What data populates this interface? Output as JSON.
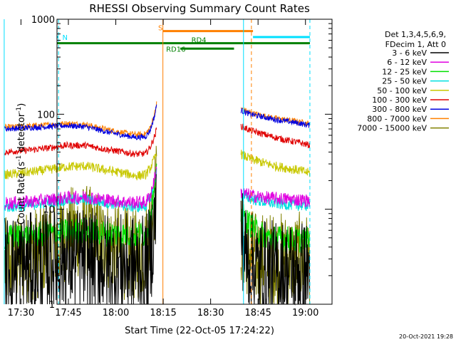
{
  "chart_data": {
    "type": "line",
    "title": "RHESSI Observing Summary Count Rates",
    "xlabel": "Start Time (22-Oct-05 17:24:22)",
    "ylabel": "Count Rate (s⁻¹ detector⁻¹)",
    "ylabel_parts": [
      "Count Rate (s",
      "-1",
      " detector",
      "-1",
      ")"
    ],
    "yscale": "log",
    "ylim": [
      1,
      1000
    ],
    "xlim_minutes": [
      17.0,
      104.0
    ],
    "x_unit": "minutes after 17:24:22",
    "x_ticks": [
      {
        "label": "17:30",
        "min": 5.6
      },
      {
        "label": "17:45",
        "min": 20.6
      },
      {
        "label": "18:00",
        "min": 35.6
      },
      {
        "label": "18:15",
        "min": 50.6
      },
      {
        "label": "18:30",
        "min": 65.6
      },
      {
        "label": "18:45",
        "min": 80.6
      },
      {
        "label": "19:00",
        "min": 95.6
      }
    ],
    "y_ticks": [
      {
        "label": "1",
        "value": 1
      },
      {
        "label": "10",
        "value": 10
      },
      {
        "label": "100",
        "value": 100
      },
      {
        "label": "1000",
        "value": 1000
      }
    ],
    "legend_header": [
      "Det 1,3,4,5,6,9,",
      "FDecim 1, Att 0"
    ],
    "legend_position": "right",
    "gaps_minutes": [
      [
        48.5,
        75.0
      ]
    ],
    "series": [
      {
        "name": "3 - 6 keV",
        "color": "#000000",
        "noise": 0.55,
        "points": [
          [
            0.5,
            2.5
          ],
          [
            8,
            2.6
          ],
          [
            14,
            2.8
          ],
          [
            20,
            3.0
          ],
          [
            26,
            3.0
          ],
          [
            32,
            2.7
          ],
          [
            38,
            2.6
          ],
          [
            42,
            2.5
          ],
          [
            45,
            2.4
          ],
          [
            46.5,
            3.2
          ],
          [
            48,
            8
          ],
          [
            48.5,
            14
          ]
        ],
        "post": [
          [
            75.2,
            6
          ],
          [
            77,
            3.0
          ],
          [
            80,
            2.4
          ],
          [
            84,
            2.2
          ],
          [
            88,
            2.2
          ],
          [
            93,
            2.2
          ],
          [
            97,
            2.2
          ]
        ]
      },
      {
        "name": "6 - 12 keV",
        "color": "#e000e0",
        "noise": 0.07,
        "points": [
          [
            0.5,
            11.5
          ],
          [
            8,
            12
          ],
          [
            14,
            12.5
          ],
          [
            20,
            13.2
          ],
          [
            26,
            13.5
          ],
          [
            32,
            12.6
          ],
          [
            38,
            12
          ],
          [
            42,
            11.8
          ],
          [
            45,
            11.8
          ],
          [
            46.5,
            14
          ],
          [
            48,
            22
          ],
          [
            48.5,
            26
          ]
        ],
        "post": [
          [
            75.2,
            15
          ],
          [
            78,
            14
          ],
          [
            82,
            13.3
          ],
          [
            86,
            13
          ],
          [
            90,
            12.8
          ],
          [
            94,
            12.5
          ],
          [
            97,
            12.3
          ]
        ]
      },
      {
        "name": "12 - 25 keV",
        "color": "#00e000",
        "noise": 0.14,
        "points": [
          [
            0.5,
            5.0
          ],
          [
            8,
            5.3
          ],
          [
            14,
            5.5
          ],
          [
            20,
            5.8
          ],
          [
            26,
            6.0
          ],
          [
            32,
            5.6
          ],
          [
            38,
            5.4
          ],
          [
            42,
            5.3
          ],
          [
            45,
            5.5
          ],
          [
            46.5,
            7.5
          ],
          [
            48,
            18
          ],
          [
            48.5,
            22
          ]
        ],
        "post": [
          [
            75.2,
            9
          ],
          [
            77,
            7.5
          ],
          [
            80,
            6.0
          ],
          [
            84,
            5.0
          ],
          [
            88,
            4.9
          ],
          [
            92,
            4.8
          ],
          [
            97,
            4.7
          ]
        ]
      },
      {
        "name": "25 - 50 keV",
        "color": "#00e0e0",
        "noise": 0.06,
        "points": [
          [
            0.5,
            10.5
          ],
          [
            8,
            11
          ],
          [
            14,
            11.8
          ],
          [
            20,
            12.5
          ],
          [
            26,
            12.6
          ],
          [
            32,
            11.8
          ],
          [
            38,
            11
          ],
          [
            42,
            10.5
          ],
          [
            45,
            10.8
          ],
          [
            46.5,
            13
          ],
          [
            48,
            20
          ],
          [
            48.5,
            24
          ]
        ],
        "post": [
          [
            75.2,
            14
          ],
          [
            78,
            13
          ],
          [
            82,
            12
          ],
          [
            86,
            11.5
          ],
          [
            90,
            11.2
          ],
          [
            94,
            11
          ],
          [
            97,
            10.8
          ]
        ]
      },
      {
        "name": "50 - 100 keV",
        "color": "#c8c800",
        "noise": 0.05,
        "points": [
          [
            0.5,
            23
          ],
          [
            8,
            24.5
          ],
          [
            14,
            26
          ],
          [
            20,
            28
          ],
          [
            26,
            28.5
          ],
          [
            32,
            26
          ],
          [
            38,
            24
          ],
          [
            42,
            22.5
          ],
          [
            45,
            23
          ],
          [
            46.5,
            27
          ],
          [
            48,
            35
          ],
          [
            48.5,
            40
          ]
        ],
        "post": [
          [
            75.2,
            38
          ],
          [
            78,
            34
          ],
          [
            82,
            31
          ],
          [
            86,
            28.5
          ],
          [
            90,
            27
          ],
          [
            94,
            25.5
          ],
          [
            97,
            24
          ]
        ]
      },
      {
        "name": "100 - 300 keV",
        "color": "#e00000",
        "noise": 0.035,
        "points": [
          [
            0.5,
            40
          ],
          [
            8,
            42
          ],
          [
            14,
            44
          ],
          [
            20,
            47
          ],
          [
            26,
            47
          ],
          [
            32,
            43
          ],
          [
            38,
            40
          ],
          [
            42,
            38
          ],
          [
            45,
            38.5
          ],
          [
            46.5,
            45
          ],
          [
            48,
            60
          ],
          [
            48.5,
            70
          ]
        ],
        "post": [
          [
            75.2,
            75
          ],
          [
            78,
            68
          ],
          [
            82,
            62
          ],
          [
            86,
            57
          ],
          [
            90,
            53
          ],
          [
            94,
            50
          ],
          [
            97,
            47
          ]
        ]
      },
      {
        "name": "300 - 800 keV",
        "color": "#0000e0",
        "noise": 0.03,
        "points": [
          [
            0.5,
            70
          ],
          [
            8,
            72
          ],
          [
            14,
            74
          ],
          [
            20,
            76
          ],
          [
            26,
            74
          ],
          [
            32,
            66
          ],
          [
            38,
            60
          ],
          [
            42,
            57
          ],
          [
            45,
            58
          ],
          [
            46.5,
            68
          ],
          [
            48,
            100
          ],
          [
            48.5,
            125
          ]
        ],
        "post": [
          [
            75.2,
            110
          ],
          [
            78,
            100
          ],
          [
            82,
            94
          ],
          [
            86,
            88
          ],
          [
            90,
            84
          ],
          [
            94,
            80
          ],
          [
            97,
            76
          ]
        ]
      },
      {
        "name": "800 - 7000 keV",
        "color": "#ff8000",
        "noise": 0.03,
        "points": [
          [
            0.5,
            73
          ],
          [
            8,
            75
          ],
          [
            14,
            77
          ],
          [
            20,
            80
          ],
          [
            26,
            78
          ],
          [
            32,
            70
          ],
          [
            38,
            64
          ],
          [
            42,
            61
          ],
          [
            45,
            62
          ],
          [
            46.5,
            72
          ],
          [
            48,
            105
          ],
          [
            48.5,
            130
          ]
        ],
        "post": [
          [
            75.2,
            115
          ],
          [
            78,
            104
          ],
          [
            82,
            97
          ],
          [
            86,
            91
          ],
          [
            90,
            87
          ],
          [
            94,
            83
          ],
          [
            97,
            79
          ]
        ]
      },
      {
        "name": "7000 - 15000 keV",
        "color": "#808000",
        "noise": 0.5,
        "points": [
          [
            0.5,
            2.6
          ],
          [
            8,
            3.2
          ],
          [
            14,
            4.0
          ],
          [
            20,
            5.5
          ],
          [
            26,
            6.0
          ],
          [
            32,
            4.5
          ],
          [
            38,
            3.5
          ],
          [
            42,
            3.2
          ],
          [
            45,
            3.8
          ],
          [
            46.5,
            7.5
          ],
          [
            48,
            14
          ],
          [
            48.5,
            18
          ]
        ],
        "post": [
          [
            75.2,
            5
          ],
          [
            77,
            3.8
          ],
          [
            80,
            3.0
          ],
          [
            84,
            3.0
          ],
          [
            88,
            3.0
          ],
          [
            93,
            3.0
          ],
          [
            97,
            3.0
          ]
        ]
      }
    ],
    "status_bars": [
      {
        "label": "N",
        "color": "#00e0ff",
        "value": 650,
        "start": 0,
        "end": 17.5
      },
      {
        "label": "",
        "color": "#00e0ff",
        "value": 650,
        "start": 79,
        "end": 97
      },
      {
        "label": "S",
        "color": "#ff8000",
        "value": 750,
        "start": 50.5,
        "end": 79
      },
      {
        "label": "",
        "color": "#008000",
        "value": 560,
        "start": 0,
        "end": 97
      },
      {
        "label": "RD4",
        "color": "#008000",
        "value": 560,
        "start": 0,
        "end": 0
      },
      {
        "label": "RD16",
        "color": "#008000",
        "value": 490,
        "start": 56,
        "end": 73
      }
    ],
    "vertical_markers": [
      {
        "min": 17.5,
        "color": "#00e0ff",
        "style": "dashed"
      },
      {
        "min": 50.5,
        "color": "#ff8000",
        "style": "solid"
      },
      {
        "min": 76.0,
        "color": "#00e0ff",
        "style": "solid"
      },
      {
        "min": 78.5,
        "color": "#ff8000",
        "style": "dashed"
      },
      {
        "min": 97.0,
        "color": "#00e0ff",
        "style": "dashed"
      },
      {
        "min": 0.3,
        "color": "#00e0ff",
        "style": "solid"
      }
    ]
  },
  "timestamp": "20-Oct-2021 19:28"
}
